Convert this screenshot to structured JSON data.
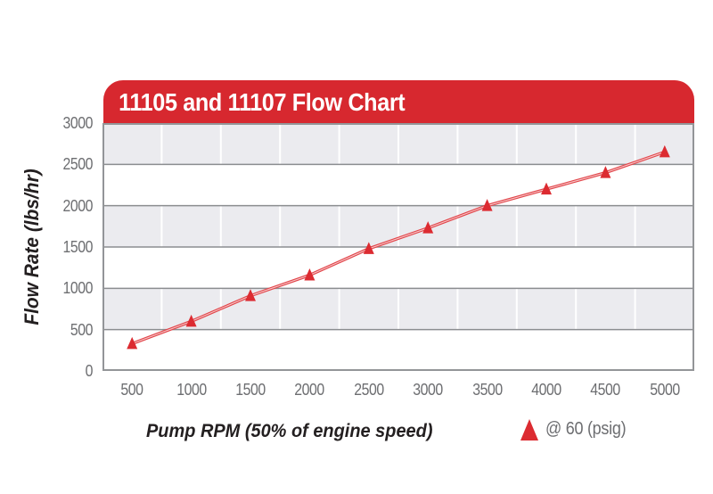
{
  "chart_data": {
    "type": "line",
    "title": "11105 and 11107 Flow Chart",
    "xlabel": "Pump RPM (50% of engine speed)",
    "ylabel": "Flow Rate (lbs/hr)",
    "x": [
      500,
      1000,
      1500,
      2000,
      2500,
      3000,
      3500,
      4000,
      4500,
      5000
    ],
    "series": [
      {
        "name": "@ 60 (psig)",
        "marker": "triangle-up",
        "values": [
          330,
          600,
          910,
          1160,
          1480,
          1730,
          2000,
          2200,
          2400,
          2650
        ]
      }
    ],
    "x_ticks": [
      500,
      1000,
      1500,
      2000,
      2500,
      3000,
      3500,
      4000,
      4500,
      5000
    ],
    "y_ticks": [
      0,
      500,
      1000,
      1500,
      2000,
      2500,
      3000
    ],
    "xlim": [
      250,
      5250
    ],
    "ylim": [
      0,
      3000
    ],
    "grid": "horizontal major lines, alternating gray/white horizontal bands, white vertical minor lines at tick midpoints",
    "legend_position": "bottom-right"
  },
  "colors": {
    "banner": "#d7282f",
    "title_text": "#ffffff",
    "band_gray": "#ebebef",
    "band_white": "#ffffff",
    "h_gridline": "#8b8d90",
    "v_gridline": "#ffffff",
    "plot_border": "#939598",
    "tick_text": "#6d6e71",
    "axis_title_text": "#231f20",
    "line": "#e2454a",
    "line_core": "rgba(255,255,255,0.7)",
    "marker": "#dc2b31"
  }
}
